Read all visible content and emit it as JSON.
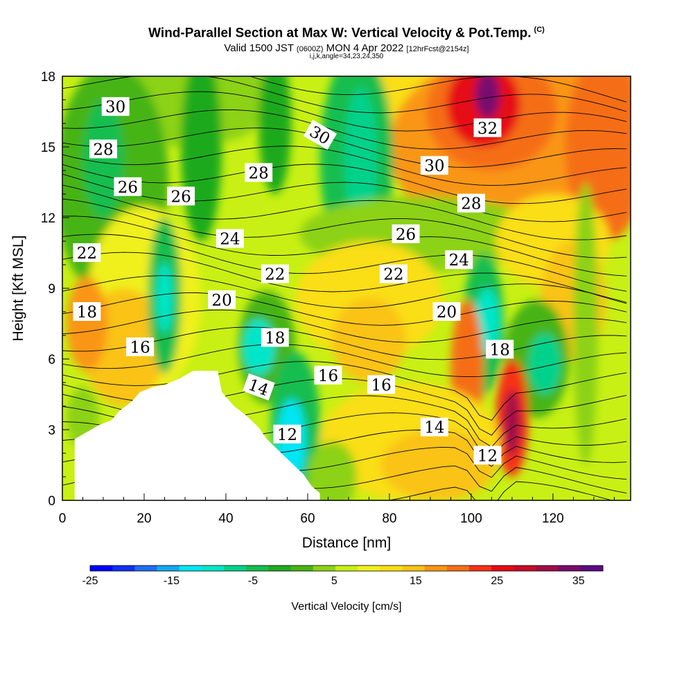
{
  "header": {
    "title": "Wind-Parallel Section at Max W: Vertical Velocity & Pot.Temp.",
    "copyright": "(C)",
    "valid_prefix": "Valid 1500 JST",
    "valid_utc": "(0600Z)",
    "valid_date": "MON 4 Apr 2022",
    "forecast": "[12hrFcst@2154z]",
    "indices": "i,j,k,angle=34,23,24,350"
  },
  "chart_data": {
    "type": "heatmap",
    "xlabel": "Distance [nm]",
    "ylabel": "Height [Kft MSL]",
    "xlim": [
      0,
      139
    ],
    "ylim": [
      0,
      18
    ],
    "x_ticks": [
      0,
      20,
      40,
      60,
      80,
      100,
      120
    ],
    "y_ticks": [
      0,
      3,
      6,
      9,
      12,
      15,
      18
    ],
    "colorbar": {
      "label": "Vertical Velocity [cm/s]",
      "range": [
        -25,
        38
      ],
      "tick_labels": [
        "-25",
        "-15",
        "-5",
        "5",
        "15",
        "25",
        "35"
      ],
      "colors": [
        "#0000ff",
        "#0f2ff5",
        "#1e6ef0",
        "#14a8f0",
        "#00e6f5",
        "#00e6c8",
        "#00d28c",
        "#14be50",
        "#1eaa1e",
        "#46b414",
        "#8cd214",
        "#c8f014",
        "#f0f01e",
        "#fade14",
        "#fac314",
        "#fa9614",
        "#f56e14",
        "#f53214",
        "#e60a14",
        "#c80a28",
        "#a00a46",
        "#780a6e",
        "#5a0a82"
      ]
    },
    "isentrope_labels": [
      {
        "x": 13,
        "y": 16.7,
        "text": "30",
        "rot": 0
      },
      {
        "x": 10,
        "y": 14.9,
        "text": "28",
        "rot": 0
      },
      {
        "x": 16,
        "y": 13.3,
        "text": "26",
        "rot": 0
      },
      {
        "x": 29,
        "y": 12.9,
        "text": "26",
        "rot": 0
      },
      {
        "x": 63,
        "y": 15.5,
        "text": "30",
        "rot": 30
      },
      {
        "x": 48,
        "y": 13.9,
        "text": "28",
        "rot": 0
      },
      {
        "x": 104,
        "y": 15.8,
        "text": "32",
        "rot": 0
      },
      {
        "x": 91,
        "y": 14.2,
        "text": "30",
        "rot": 0
      },
      {
        "x": 100,
        "y": 12.6,
        "text": "28",
        "rot": 0
      },
      {
        "x": 84,
        "y": 11.3,
        "text": "26",
        "rot": 0
      },
      {
        "x": 41,
        "y": 11.1,
        "text": "24",
        "rot": 0
      },
      {
        "x": 97,
        "y": 10.2,
        "text": "24",
        "rot": 0
      },
      {
        "x": 6,
        "y": 10.5,
        "text": "22",
        "rot": 0
      },
      {
        "x": 52,
        "y": 9.6,
        "text": "22",
        "rot": 0
      },
      {
        "x": 81,
        "y": 9.6,
        "text": "22",
        "rot": 0
      },
      {
        "x": 39,
        "y": 8.5,
        "text": "20",
        "rot": 0
      },
      {
        "x": 94,
        "y": 8.0,
        "text": "20",
        "rot": 0
      },
      {
        "x": 6,
        "y": 8.0,
        "text": "18",
        "rot": 0
      },
      {
        "x": 52,
        "y": 6.9,
        "text": "18",
        "rot": 0
      },
      {
        "x": 107,
        "y": 6.4,
        "text": "18",
        "rot": 0
      },
      {
        "x": 19,
        "y": 6.5,
        "text": "16",
        "rot": 0
      },
      {
        "x": 65,
        "y": 5.3,
        "text": "16",
        "rot": 0
      },
      {
        "x": 78,
        "y": 4.9,
        "text": "16",
        "rot": 0
      },
      {
        "x": 48,
        "y": 4.8,
        "text": "14",
        "rot": 20
      },
      {
        "x": 91,
        "y": 3.1,
        "text": "14",
        "rot": 0
      },
      {
        "x": 55,
        "y": 2.8,
        "text": "12",
        "rot": 0
      },
      {
        "x": 104,
        "y": 1.9,
        "text": "12",
        "rot": 0
      }
    ],
    "terrain_top_kft": [
      [
        3,
        2.6
      ],
      [
        6,
        2.9
      ],
      [
        9,
        3.2
      ],
      [
        12,
        3.4
      ],
      [
        14,
        3.8
      ],
      [
        17,
        4.2
      ],
      [
        19,
        4.6
      ],
      [
        22,
        4.8
      ],
      [
        25,
        4.9
      ],
      [
        29,
        5.2
      ],
      [
        32,
        5.5
      ],
      [
        38,
        5.5
      ],
      [
        39,
        4.6
      ],
      [
        42,
        4.0
      ],
      [
        45,
        3.6
      ],
      [
        48,
        3.1
      ],
      [
        50,
        2.6
      ],
      [
        53,
        2.1
      ],
      [
        56,
        1.6
      ],
      [
        59,
        1.1
      ],
      [
        61,
        0.6
      ],
      [
        63,
        0.3
      ]
    ]
  }
}
